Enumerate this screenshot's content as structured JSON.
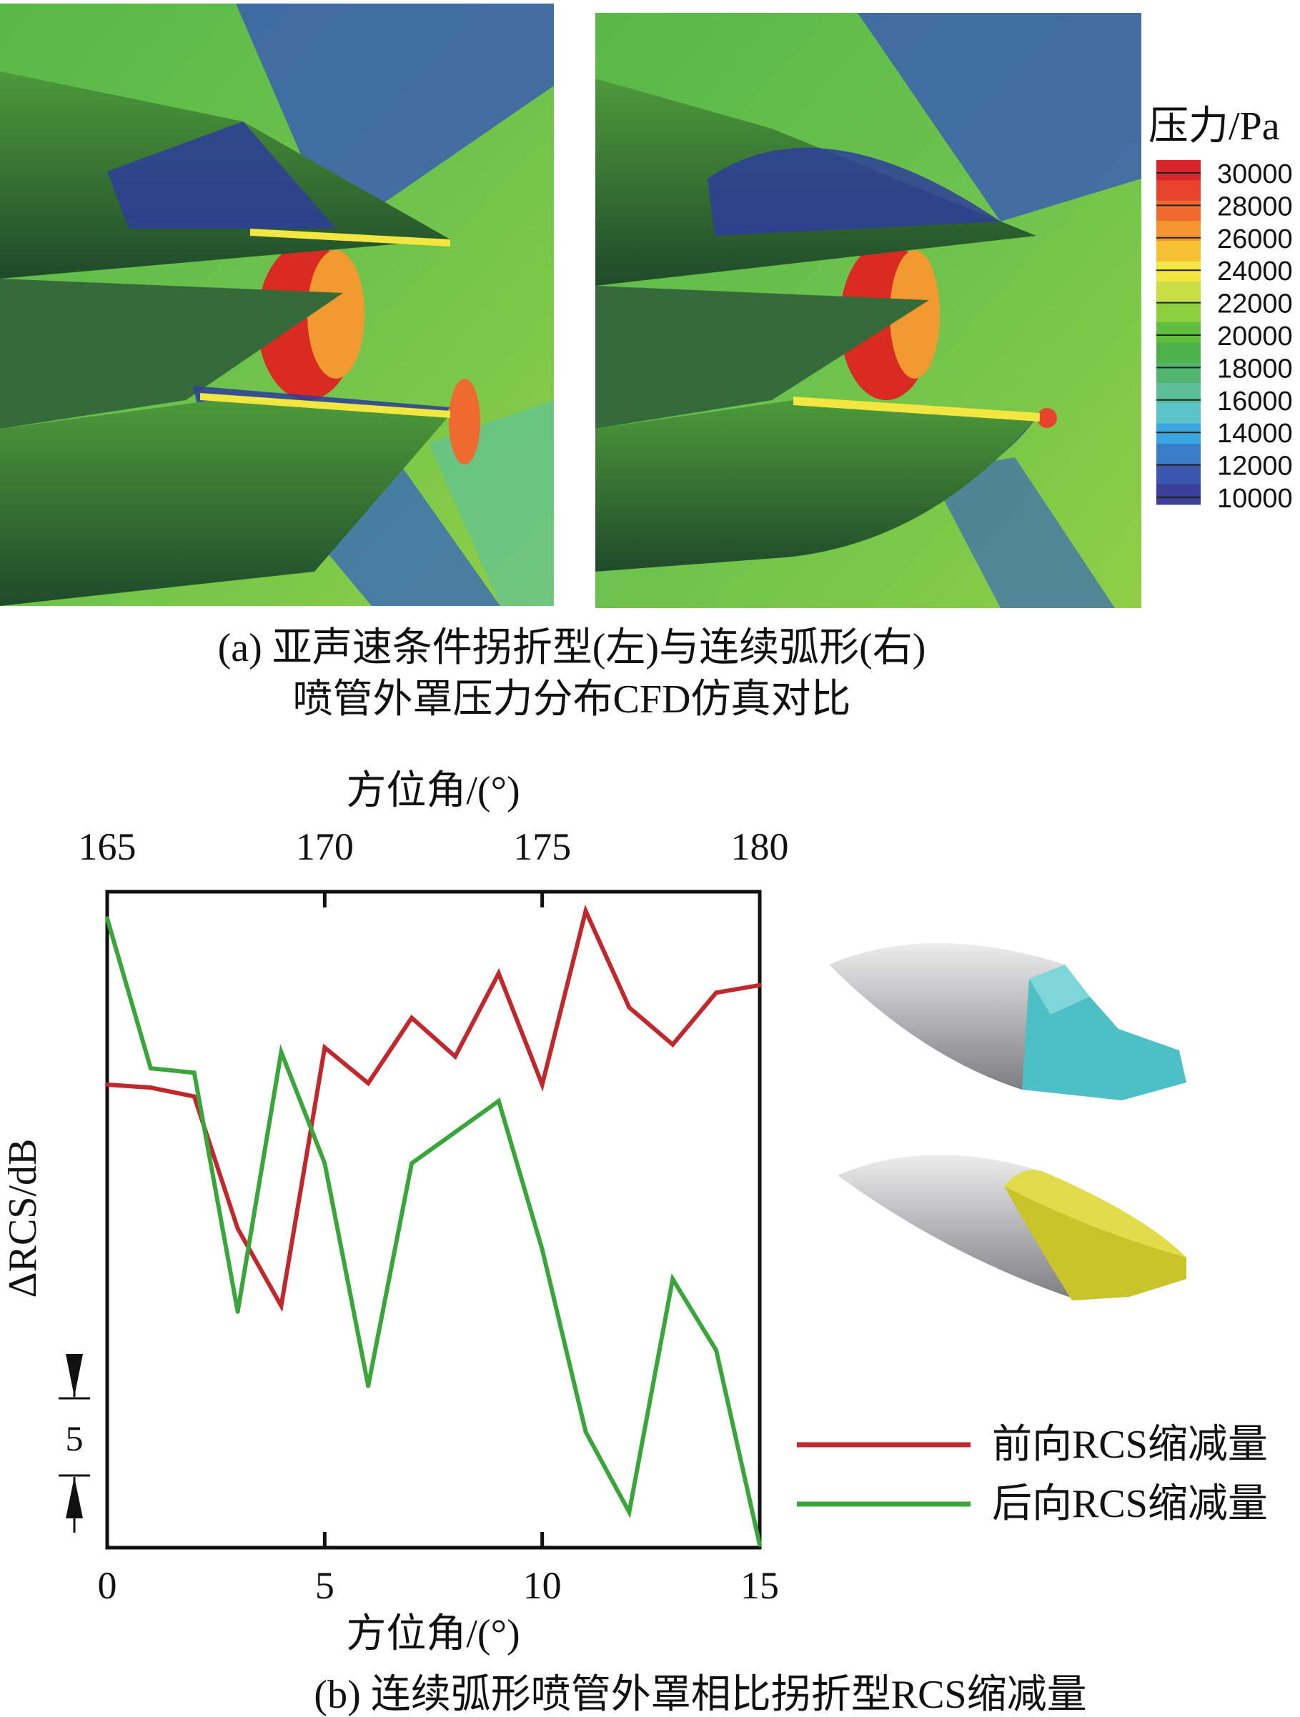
{
  "panel_a": {
    "legend_title": "压力/Pa",
    "legend_ticks": [
      "30000",
      "28000",
      "26000",
      "24000",
      "22000",
      "20000",
      "18000",
      "16000",
      "14000",
      "12000",
      "10000"
    ],
    "legend_colors": [
      "#d7262b",
      "#e8432d",
      "#ee6a2e",
      "#f4952f",
      "#f6c233",
      "#f2e640",
      "#c9de44",
      "#8ccf3e",
      "#5fbe3c",
      "#4db24a",
      "#52b56e",
      "#5bbf9a",
      "#5ac4c8",
      "#3ca6e0",
      "#3a7ec8",
      "#3b56ad",
      "#3a3f99"
    ],
    "caption_line1": "(a) 亚声速条件拐折型(左)与连续弧形(右)",
    "caption_line2": "喷管外罩压力分布CFD仿真对比"
  },
  "chart_data": {
    "type": "line",
    "title": "",
    "caption": "(b) 连续弧形喷管外罩相比拐折型RCS缩减量",
    "xlabel": "方位角/(°)",
    "x2label": "方位角/(°)",
    "ylabel": "ΔRCS/dB",
    "x": [
      0,
      1,
      2,
      3,
      4,
      5,
      6,
      7,
      8,
      9,
      10,
      11,
      12,
      13,
      14,
      15
    ],
    "xlim": [
      0,
      15
    ],
    "x_ticks": [
      "0",
      "5",
      "10",
      "15"
    ],
    "x2_ticks": [
      "165",
      "170",
      "175",
      "180"
    ],
    "ylim": [
      0,
      44.2
    ],
    "scale_bar_label": "5",
    "scale_bar_value": 5,
    "legend_position": "right",
    "series": [
      {
        "name": "前向RCS缩减量",
        "color": "#c0282d",
        "values": [
          31.2,
          31.0,
          30.4,
          21.5,
          16.3,
          33.7,
          31.3,
          35.7,
          33.1,
          38.7,
          31.2,
          42.9,
          36.4,
          33.9,
          37.4,
          37.9
        ]
      },
      {
        "name": "后向RCS缩减量",
        "color": "#3aa53a",
        "values": [
          42.4,
          32.3,
          32.0,
          15.9,
          33.4,
          25.9,
          10.9,
          25.9,
          28.0,
          30.1,
          20.1,
          7.8,
          2.4,
          18.1,
          13.3,
          0.2
        ]
      }
    ]
  }
}
